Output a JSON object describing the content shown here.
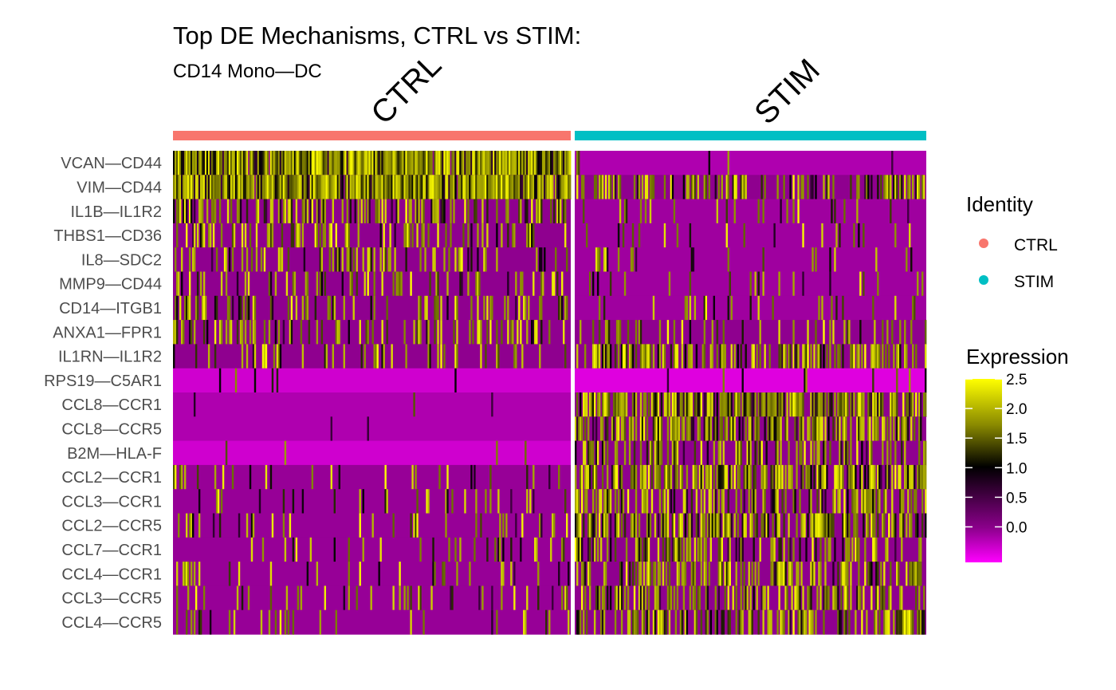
{
  "chart_data": {
    "type": "heatmap",
    "title": "Top DE Mechanisms, CTRL vs STIM:",
    "subtitle": "CD14 Mono—DC",
    "groups": [
      {
        "name": "CTRL",
        "color": "#F8766D"
      },
      {
        "name": "STIM",
        "color": "#00BFC4"
      }
    ],
    "rows": [
      "VCAN—CD44",
      "VIM—CD44",
      "IL1B—IL1R2",
      "THBS1—CD36",
      "IL8—SDC2",
      "MMP9—CD44",
      "CD14—ITGB1",
      "ANXA1—FPR1",
      "IL1RN—IL1R2",
      "RPS19—C5AR1",
      "CCL8—CCR1",
      "CCL8—CCR5",
      "B2M—HLA-F",
      "CCL2—CCR1",
      "CCL3—CCR1",
      "CCL2—CCR5",
      "CCL7—CCR1",
      "CCL4—CCR1",
      "CCL3—CCR5",
      "CCL4—CCR5"
    ],
    "approx_mean_expression": {
      "CTRL": [
        1.4,
        1.2,
        0.5,
        0.3,
        0.3,
        0.2,
        0.2,
        0.3,
        0.1,
        -0.3,
        -0.1,
        -0.1,
        -0.3,
        0.05,
        0.05,
        0.05,
        0.05,
        0.05,
        0.05,
        0.05
      ],
      "STIM": [
        -0.1,
        0.4,
        0.0,
        0.0,
        0.0,
        0.0,
        0.0,
        0.1,
        0.5,
        -0.4,
        0.9,
        0.7,
        0.4,
        0.8,
        0.6,
        0.7,
        0.5,
        0.5,
        0.5,
        0.5
      ]
    },
    "legend_identity": {
      "title": "Identity",
      "entries": [
        {
          "label": "CTRL",
          "color": "#F8766D"
        },
        {
          "label": "STIM",
          "color": "#00BFC4"
        }
      ]
    },
    "legend_expression": {
      "title": "Expression",
      "ticks": [
        "2.5",
        "2.0",
        "1.5",
        "1.0",
        "0.5",
        "0.0"
      ],
      "tick_values": [
        2.5,
        2.0,
        1.5,
        1.0,
        0.5,
        0.0
      ],
      "range": [
        -0.6,
        2.5
      ],
      "colors": [
        "#FF00FF",
        "#000000",
        "#FFFF00"
      ]
    }
  }
}
